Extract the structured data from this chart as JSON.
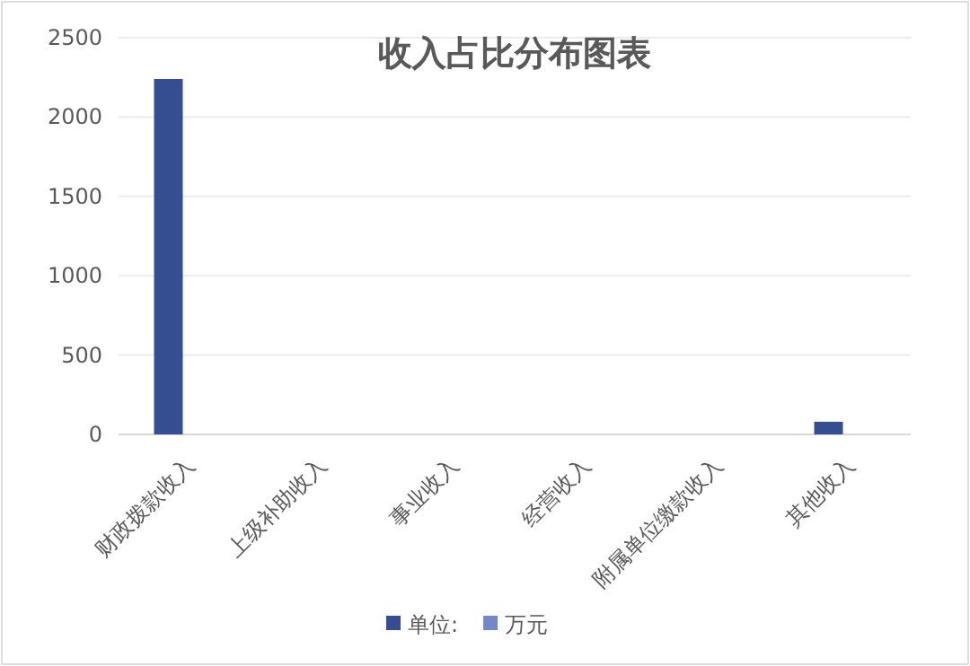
{
  "chart_data": {
    "type": "bar",
    "title": "收入占比分布图表",
    "categories": [
      "财政拨款收入",
      "上级补助收入",
      "事业收入",
      "经营收入",
      "附属单位缴款收入",
      "其他收入"
    ],
    "series": [
      {
        "name": "单位:",
        "color": "#354e91",
        "values": [
          2240,
          0,
          0,
          0,
          0,
          80
        ]
      },
      {
        "name": "万元",
        "color": "#7189c8",
        "values": [
          null,
          null,
          null,
          null,
          null,
          null
        ]
      }
    ],
    "ylim": [
      0,
      2500
    ],
    "yticks": [
      0,
      500,
      1000,
      1500,
      2000,
      2500
    ],
    "grid": "y",
    "legend": "bottom"
  }
}
